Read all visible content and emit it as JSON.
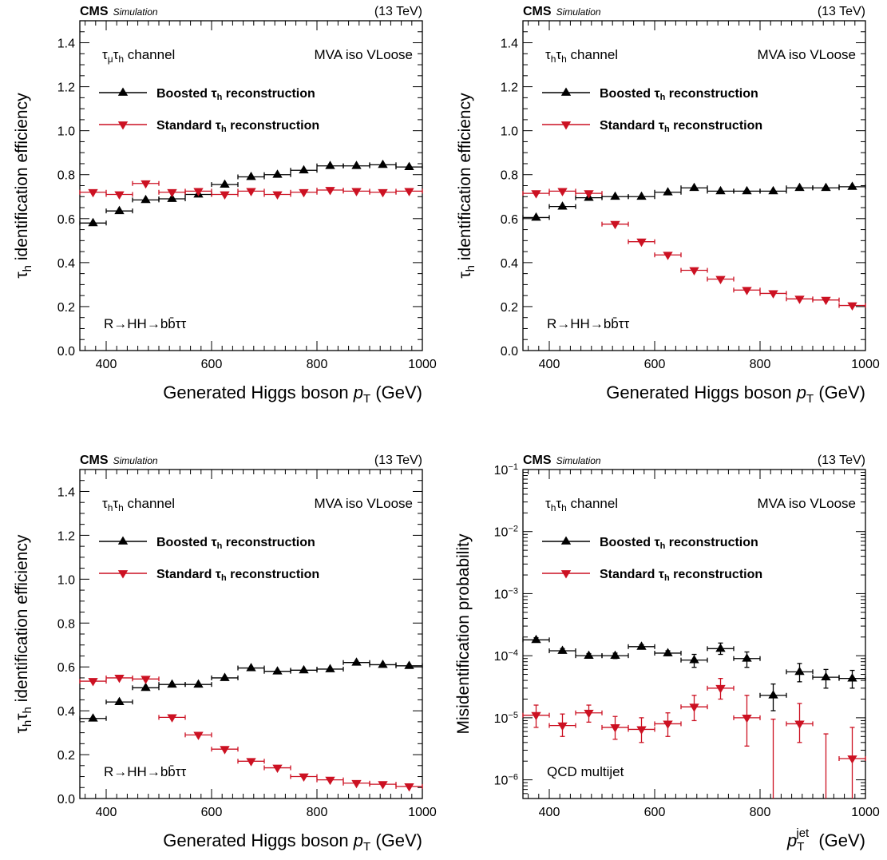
{
  "colors": {
    "boosted": "#000000",
    "standard": "#cc1122",
    "axis": "#000000"
  },
  "chart_data": [
    {
      "type": "scatter",
      "title_left": "CMS",
      "title_sub": "Simulation",
      "title_right": "(13 TeV)",
      "channel_label": "τμτh channel",
      "wp_label": "MVA iso VLoose",
      "process_label": "R→HH→bb̄ττ",
      "ylabel": "τh identification efficiency",
      "xlabel": "Generated Higgs boson pT (GeV)",
      "xlim": [
        350,
        1000
      ],
      "ylim": [
        0,
        1.5
      ],
      "ylog": false,
      "xticks": [
        400,
        600,
        800,
        1000
      ],
      "yticks": [
        0.0,
        0.2,
        0.4,
        0.6,
        0.8,
        1.0,
        1.2,
        1.4
      ],
      "ytick_labels": [
        "0.0",
        "0.2",
        "0.4",
        "0.6",
        "0.8",
        "1.0",
        "1.2",
        "1.4"
      ],
      "legend": [
        "Boosted τh reconstruction",
        "Standard τh reconstruction"
      ],
      "x": [
        375,
        425,
        475,
        525,
        575,
        625,
        675,
        725,
        775,
        825,
        875,
        925,
        975
      ],
      "xerr": 25,
      "series": [
        {
          "name": "Boosted τh reconstruction",
          "marker": "triangle-up",
          "values": [
            0.58,
            0.635,
            0.685,
            0.69,
            0.71,
            0.755,
            0.79,
            0.8,
            0.82,
            0.84,
            0.84,
            0.845,
            0.835
          ]
        },
        {
          "name": "Standard τh reconstruction",
          "marker": "triangle-down",
          "values": [
            0.72,
            0.71,
            0.76,
            0.72,
            0.725,
            0.71,
            0.725,
            0.71,
            0.72,
            0.73,
            0.725,
            0.72,
            0.725
          ]
        }
      ]
    },
    {
      "type": "scatter",
      "title_left": "CMS",
      "title_sub": "Simulation",
      "title_right": "(13 TeV)",
      "channel_label": "τhτh channel",
      "wp_label": "MVA iso VLoose",
      "process_label": "R→HH→bb̄ττ",
      "ylabel": "τh identification efficiency",
      "xlabel": "Generated Higgs boson pT (GeV)",
      "xlim": [
        350,
        1000
      ],
      "ylim": [
        0,
        1.5
      ],
      "ylog": false,
      "xticks": [
        400,
        600,
        800,
        1000
      ],
      "yticks": [
        0.0,
        0.2,
        0.4,
        0.6,
        0.8,
        1.0,
        1.2,
        1.4
      ],
      "ytick_labels": [
        "0.0",
        "0.2",
        "0.4",
        "0.6",
        "0.8",
        "1.0",
        "1.2",
        "1.4"
      ],
      "legend": [
        "Boosted τh reconstruction",
        "Standard τh reconstruction"
      ],
      "x": [
        375,
        425,
        475,
        525,
        575,
        625,
        675,
        725,
        775,
        825,
        875,
        925,
        975
      ],
      "xerr": 25,
      "series": [
        {
          "name": "Boosted τh reconstruction",
          "marker": "triangle-up",
          "values": [
            0.605,
            0.655,
            0.695,
            0.7,
            0.7,
            0.72,
            0.74,
            0.725,
            0.725,
            0.725,
            0.74,
            0.74,
            0.745
          ]
        },
        {
          "name": "Standard τh reconstruction",
          "marker": "triangle-down",
          "values": [
            0.715,
            0.725,
            0.715,
            0.575,
            0.495,
            0.435,
            0.365,
            0.325,
            0.275,
            0.26,
            0.235,
            0.23,
            0.205
          ]
        }
      ]
    },
    {
      "type": "scatter",
      "title_left": "CMS",
      "title_sub": "Simulation",
      "title_right": "(13 TeV)",
      "channel_label": "τhτh channel",
      "wp_label": "MVA iso VLoose",
      "process_label": "R→HH→bb̄ττ",
      "ylabel": "τhτh identification efficiency",
      "xlabel": "Generated Higgs boson pT (GeV)",
      "xlim": [
        350,
        1000
      ],
      "ylim": [
        0,
        1.5
      ],
      "ylog": false,
      "xticks": [
        400,
        600,
        800,
        1000
      ],
      "yticks": [
        0.0,
        0.2,
        0.4,
        0.6,
        0.8,
        1.0,
        1.2,
        1.4
      ],
      "ytick_labels": [
        "0.0",
        "0.2",
        "0.4",
        "0.6",
        "0.8",
        "1.0",
        "1.2",
        "1.4"
      ],
      "legend": [
        "Boosted τh reconstruction",
        "Standard τh reconstruction"
      ],
      "x": [
        375,
        425,
        475,
        525,
        575,
        625,
        675,
        725,
        775,
        825,
        875,
        925,
        975
      ],
      "xerr": 25,
      "series": [
        {
          "name": "Boosted τh reconstruction",
          "marker": "triangle-up",
          "values": [
            0.365,
            0.44,
            0.505,
            0.52,
            0.52,
            0.55,
            0.595,
            0.58,
            0.585,
            0.59,
            0.62,
            0.61,
            0.605
          ]
        },
        {
          "name": "Standard τh reconstruction",
          "marker": "triangle-down",
          "values": [
            0.535,
            0.55,
            0.545,
            0.37,
            0.29,
            0.225,
            0.17,
            0.14,
            0.1,
            0.085,
            0.07,
            0.065,
            0.055
          ]
        }
      ]
    },
    {
      "type": "scatter",
      "title_left": "CMS",
      "title_sub": "Simulation",
      "title_right": "(13 TeV)",
      "channel_label": "τhτh channel",
      "wp_label": "MVA iso VLoose",
      "process_label": "QCD multijet",
      "ylabel": "Misidentification probability",
      "xlabel": "pTjet (GeV)",
      "xlim": [
        350,
        1000
      ],
      "ylim": [
        5e-07,
        0.1
      ],
      "ylog": true,
      "xticks": [
        400,
        600,
        800,
        1000
      ],
      "yticks": [
        1e-06,
        1e-05,
        0.0001,
        0.001,
        0.01,
        0.1
      ],
      "ytick_labels": [
        "10−6",
        "10−5",
        "10−4",
        "10−3",
        "10−2",
        "10−1"
      ],
      "legend": [
        "Boosted τh reconstruction",
        "Standard τh reconstruction"
      ],
      "x": [
        375,
        425,
        475,
        525,
        575,
        625,
        675,
        725,
        775,
        825,
        875,
        925,
        975
      ],
      "xerr": 25,
      "series": [
        {
          "name": "Boosted τh reconstruction",
          "marker": "triangle-up",
          "values": [
            0.00018,
            0.00012,
            0.0001,
            0.0001,
            0.00014,
            0.00011,
            8.5e-05,
            0.00013,
            9e-05,
            2.3e-05,
            5.5e-05,
            4.5e-05,
            4.3e-05
          ],
          "err_low": [
            0.000165,
            0.00011,
            9.3e-05,
            9e-05,
            0.00013,
            0.0001,
            6.5e-05,
            0.000105,
            6.5e-05,
            1.3e-05,
            3.8e-05,
            3e-05,
            3e-05
          ],
          "err_high": [
            0.000195,
            0.00013,
            0.000108,
            0.00011,
            0.00015,
            0.00012,
            0.000105,
            0.00016,
            0.000115,
            3.5e-05,
            7.5e-05,
            6e-05,
            5.8e-05
          ]
        },
        {
          "name": "Standard τh reconstruction",
          "marker": "triangle-down",
          "values": [
            1.1e-05,
            7.5e-06,
            1.2e-05,
            7e-06,
            6.5e-06,
            8e-06,
            1.5e-05,
            3e-05,
            1e-05,
            null,
            8e-06,
            null,
            2.2e-06
          ],
          "err_low": [
            7e-06,
            5e-06,
            8.5e-06,
            4.5e-06,
            4e-06,
            5e-06,
            9e-06,
            2e-05,
            3.5e-06,
            5e-07,
            4e-06,
            5e-07,
            5e-07
          ],
          "err_high": [
            1.6e-05,
            1.15e-05,
            1.6e-05,
            1.05e-05,
            1e-05,
            1.2e-05,
            2.3e-05,
            4.3e-05,
            2.3e-05,
            9.5e-06,
            1.7e-05,
            5.5e-06,
            7e-06
          ]
        }
      ]
    }
  ]
}
